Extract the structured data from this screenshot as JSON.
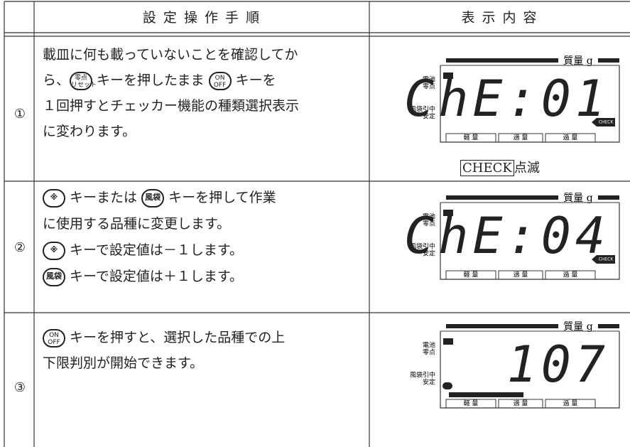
{
  "header": {
    "col1": "設 定 操 作 手 順",
    "col2": "表 示 内 容"
  },
  "display_labels": {
    "unit": "質量 g",
    "battery": "電池",
    "zero": "零点",
    "tare": "風袋引中",
    "stable": "安定",
    "light": "軽 量",
    "ok": "適 量",
    "over": "過 量"
  },
  "rows": [
    {
      "number": "①",
      "lines": [
        [
          {
            "text": "載皿に何も載っていないことを確認してか"
          }
        ],
        [
          {
            "text": "ら、"
          },
          {
            "key": [
              "零点",
              "リセット"
            ]
          },
          {
            "text": " キーを押したまま "
          },
          {
            "key": [
              "ON",
              "OFF"
            ]
          },
          {
            "text": " キーを"
          }
        ],
        [
          {
            "text": "１回押すとチェッカー機能の種類選択表示"
          }
        ],
        [
          {
            "text": "に変わります。"
          }
        ]
      ],
      "display": {
        "reading": "ChE:01",
        "check_tag": "CHECK"
      },
      "caption": {
        "boxed": "CHECK",
        "text": "点滅"
      }
    },
    {
      "number": "②",
      "lines": [
        [
          {
            "key": [
              "※"
            ]
          },
          {
            "text": " キーまたは "
          },
          {
            "key": [
              "風袋"
            ]
          },
          {
            "text": " キーを押して作業"
          }
        ],
        [
          {
            "text": "に使用する品種に変更します。"
          }
        ],
        [
          {
            "key": [
              "※"
            ]
          },
          {
            "text": " キーで設定値は－１します。"
          }
        ],
        [
          {
            "key": [
              "風袋"
            ]
          },
          {
            "text": " キーで設定値は＋１します。"
          }
        ]
      ],
      "display": {
        "reading": "ChE:04",
        "check_tag": "CHECK"
      }
    },
    {
      "number": "③",
      "lines": [
        [
          {
            "key": [
              "ON",
              "OFF"
            ]
          },
          {
            "text": " キーを押すと、選択した品種での上"
          }
        ],
        [
          {
            "text": "下限判別が開始できます。"
          }
        ]
      ],
      "display": {
        "reading": "107"
      }
    }
  ]
}
